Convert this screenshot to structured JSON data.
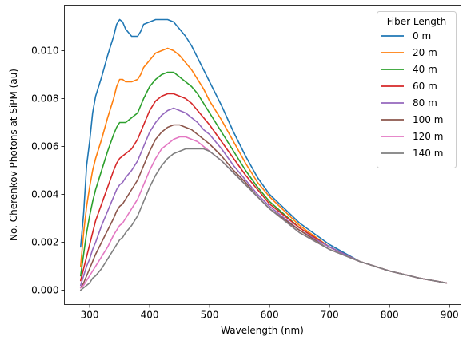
{
  "chart_data": {
    "type": "line",
    "xlabel": "Wavelength (nm)",
    "ylabel": "No. Cherenkov Photons at SiPM (au)",
    "xlim": [
      258,
      919
    ],
    "ylim": [
      -0.0006,
      0.0119
    ],
    "xticks": [
      300,
      400,
      500,
      600,
      700,
      800,
      900
    ],
    "xtick_labels": [
      "300",
      "400",
      "500",
      "600",
      "700",
      "800",
      "900"
    ],
    "yticks": [
      0.0,
      0.002,
      0.004,
      0.006,
      0.008,
      0.01
    ],
    "ytick_labels": [
      "0.000",
      "0.002",
      "0.004",
      "0.006",
      "0.008",
      "0.010"
    ],
    "grid": false,
    "legend": {
      "title": "Fiber Length",
      "location": "top-right"
    },
    "x": [
      285,
      290,
      295,
      300,
      305,
      310,
      320,
      330,
      340,
      345,
      350,
      355,
      360,
      370,
      380,
      385,
      390,
      400,
      410,
      420,
      430,
      440,
      450,
      460,
      470,
      480,
      490,
      500,
      520,
      540,
      560,
      580,
      600,
      650,
      700,
      750,
      800,
      850,
      895
    ],
    "series": [
      {
        "name": "0 m",
        "color": "#1f77b4",
        "values": [
          0.0018,
          0.0032,
          0.0052,
          0.0062,
          0.0074,
          0.0081,
          0.0089,
          0.0098,
          0.0106,
          0.0111,
          0.0113,
          0.0112,
          0.0109,
          0.0106,
          0.0106,
          0.0108,
          0.0111,
          0.0112,
          0.0113,
          0.0113,
          0.0113,
          0.0112,
          0.0109,
          0.0106,
          0.0102,
          0.0097,
          0.0092,
          0.0087,
          0.0077,
          0.0066,
          0.0056,
          0.0047,
          0.004,
          0.0028,
          0.0019,
          0.0012,
          0.0008,
          0.0005,
          0.0003
        ]
      },
      {
        "name": "20 m",
        "color": "#ff7f0e",
        "values": [
          0.001,
          0.0024,
          0.0035,
          0.0043,
          0.005,
          0.0055,
          0.0063,
          0.0072,
          0.008,
          0.0085,
          0.0088,
          0.0088,
          0.0087,
          0.0087,
          0.0088,
          0.009,
          0.0093,
          0.0096,
          0.0099,
          0.01,
          0.0101,
          0.01,
          0.0098,
          0.0095,
          0.0092,
          0.0088,
          0.0084,
          0.0079,
          0.0071,
          0.0062,
          0.0053,
          0.0045,
          0.0039,
          0.0027,
          0.0018,
          0.0012,
          0.0008,
          0.0005,
          0.0003
        ]
      },
      {
        "name": "40 m",
        "color": "#2ca02c",
        "values": [
          0.0006,
          0.0015,
          0.0024,
          0.0031,
          0.0037,
          0.0042,
          0.005,
          0.0058,
          0.0065,
          0.0068,
          0.007,
          0.007,
          0.007,
          0.0072,
          0.0074,
          0.0077,
          0.008,
          0.0085,
          0.0088,
          0.009,
          0.0091,
          0.0091,
          0.0089,
          0.0087,
          0.0085,
          0.0082,
          0.0078,
          0.0074,
          0.0066,
          0.0058,
          0.005,
          0.0043,
          0.0037,
          0.0026,
          0.0018,
          0.0012,
          0.0008,
          0.0005,
          0.0003
        ]
      },
      {
        "name": "60 m",
        "color": "#d62728",
        "values": [
          0.0004,
          0.0009,
          0.0014,
          0.0019,
          0.0024,
          0.0029,
          0.0036,
          0.0043,
          0.005,
          0.0053,
          0.0055,
          0.0056,
          0.0057,
          0.0059,
          0.0063,
          0.0066,
          0.0069,
          0.0075,
          0.0079,
          0.0081,
          0.0082,
          0.0082,
          0.0081,
          0.008,
          0.0078,
          0.0075,
          0.0072,
          0.0069,
          0.0062,
          0.0055,
          0.0048,
          0.0042,
          0.0036,
          0.0026,
          0.0018,
          0.0012,
          0.0008,
          0.0005,
          0.0003
        ]
      },
      {
        "name": "80 m",
        "color": "#9467bd",
        "values": [
          0.0002,
          0.0006,
          0.001,
          0.0013,
          0.0017,
          0.002,
          0.0027,
          0.0033,
          0.0039,
          0.0042,
          0.0044,
          0.0045,
          0.0047,
          0.005,
          0.0054,
          0.0057,
          0.006,
          0.0066,
          0.007,
          0.0073,
          0.0075,
          0.0076,
          0.0075,
          0.0074,
          0.0072,
          0.007,
          0.0067,
          0.0065,
          0.0059,
          0.0052,
          0.0046,
          0.004,
          0.0035,
          0.0025,
          0.0018,
          0.0012,
          0.0008,
          0.0005,
          0.0003
        ]
      },
      {
        "name": "100 m",
        "color": "#8c564b",
        "values": [
          0.0001,
          0.0003,
          0.0006,
          0.0009,
          0.0012,
          0.0015,
          0.002,
          0.0025,
          0.003,
          0.0033,
          0.0035,
          0.0036,
          0.0038,
          0.0042,
          0.0046,
          0.0049,
          0.0052,
          0.0058,
          0.0063,
          0.0066,
          0.0068,
          0.0069,
          0.0069,
          0.0068,
          0.0067,
          0.0065,
          0.0063,
          0.0061,
          0.0056,
          0.005,
          0.0045,
          0.0039,
          0.0034,
          0.0025,
          0.0017,
          0.0012,
          0.0008,
          0.0005,
          0.0003
        ]
      },
      {
        "name": "120 m",
        "color": "#e377c2",
        "values": [
          0.0001,
          0.0002,
          0.0004,
          0.0006,
          0.0008,
          0.001,
          0.0014,
          0.0018,
          0.0023,
          0.0025,
          0.0027,
          0.0028,
          0.003,
          0.0034,
          0.0038,
          0.0041,
          0.0044,
          0.005,
          0.0055,
          0.0059,
          0.0061,
          0.0063,
          0.0064,
          0.0064,
          0.0063,
          0.0062,
          0.006,
          0.0058,
          0.0054,
          0.0049,
          0.0044,
          0.0039,
          0.0034,
          0.0024,
          0.0017,
          0.0012,
          0.0008,
          0.0005,
          0.0003
        ]
      },
      {
        "name": "140 m",
        "color": "#7f7f7f",
        "values": [
          0.0,
          0.0001,
          0.0002,
          0.0003,
          0.0005,
          0.0006,
          0.0009,
          0.0013,
          0.0017,
          0.0019,
          0.0021,
          0.0022,
          0.0024,
          0.0027,
          0.0031,
          0.0034,
          0.0037,
          0.0043,
          0.0048,
          0.0052,
          0.0055,
          0.0057,
          0.0058,
          0.0059,
          0.0059,
          0.0059,
          0.0059,
          0.0058,
          0.0054,
          0.0049,
          0.0044,
          0.0039,
          0.0034,
          0.0024,
          0.0017,
          0.0012,
          0.0008,
          0.0005,
          0.0003
        ]
      }
    ]
  }
}
